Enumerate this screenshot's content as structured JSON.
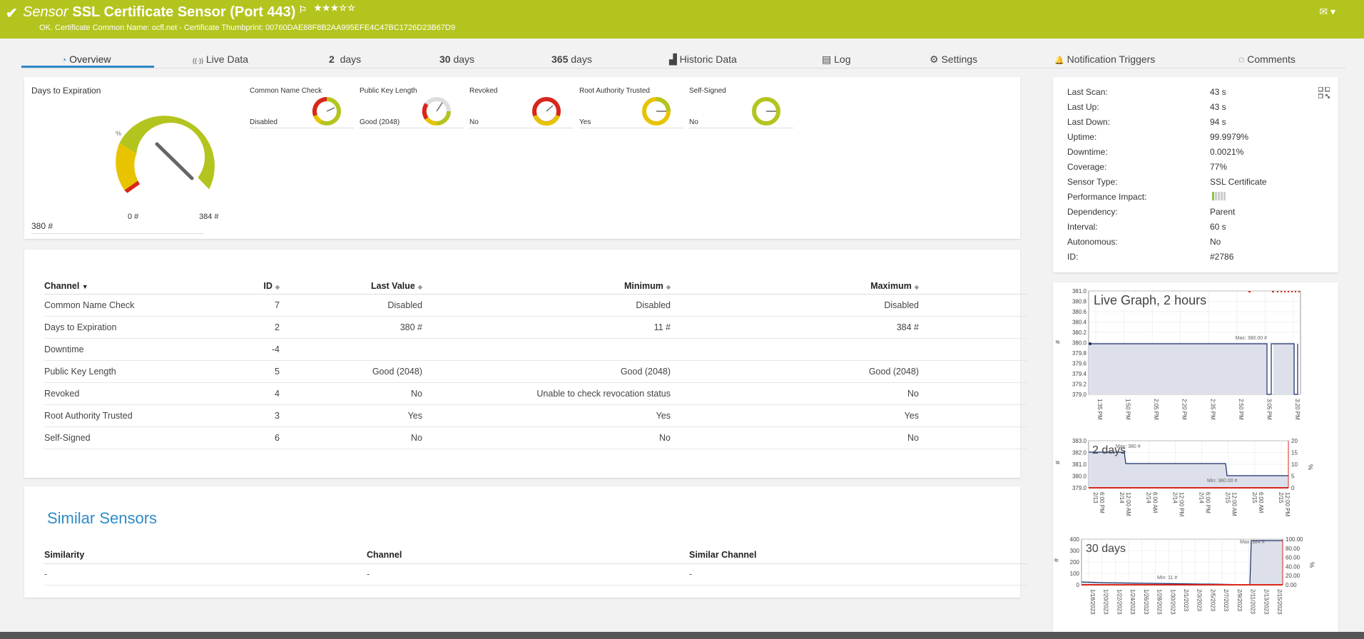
{
  "header": {
    "kind": "Sensor",
    "title": "SSL Certificate Sensor (Port 443)",
    "stars": "★★★☆☆",
    "status": "OK. Certificate Common Name: ocfl.net - Certificate Thumbprint: 00760DAE68F8B2AA995EFE4C47BC1726D23B67D9",
    "check_icon": "✔",
    "flag_icon": "⚐",
    "mail_icon": "✉ ▾"
  },
  "tabs": [
    {
      "label": "Overview",
      "icon": "◔"
    },
    {
      "label": "Live Data",
      "icon": "((·))"
    },
    {
      "num": "2",
      "label": "days"
    },
    {
      "num": "30",
      "label": "days"
    },
    {
      "num": "365",
      "label": "days"
    },
    {
      "label": "Historic Data",
      "icon": "▟"
    },
    {
      "label": "Log",
      "icon": "▤"
    },
    {
      "label": "Settings",
      "icon": "⚙"
    },
    {
      "label": "Notification Triggers",
      "icon": "🔔"
    },
    {
      "label": "Comments",
      "icon": "◌"
    }
  ],
  "gauge_main": {
    "title": "Days to Expiration",
    "value": "380 #",
    "min_label": "0 #",
    "max_label": "384 #",
    "unit": "%"
  },
  "small_gauges": [
    {
      "label": "Common Name Check",
      "value": "Disabled"
    },
    {
      "label": "Public Key Length",
      "value": "Good (2048)"
    },
    {
      "label": "Revoked",
      "value": "No"
    },
    {
      "label": "Root Authority Trusted",
      "value": "Yes"
    },
    {
      "label": "Self-Signed",
      "value": "No"
    }
  ],
  "info": [
    {
      "k": "Last Scan:",
      "v": "43 s"
    },
    {
      "k": "Last Up:",
      "v": "43 s"
    },
    {
      "k": "Last Down:",
      "v": "94 s"
    },
    {
      "k": "Uptime:",
      "v": "99.9979%"
    },
    {
      "k": "Downtime:",
      "v": "0.0021%"
    },
    {
      "k": "Coverage:",
      "v": "77%"
    },
    {
      "k": "Sensor Type:",
      "v": "SSL Certificate"
    },
    {
      "k": "Performance Impact:",
      "v": ""
    },
    {
      "k": "Dependency:",
      "v": "Parent"
    },
    {
      "k": "Interval:",
      "v": "60 s"
    },
    {
      "k": "Autonomous:",
      "v": "No"
    },
    {
      "k": "ID:",
      "v": "#2786"
    }
  ],
  "channels": {
    "headers": [
      "Channel",
      "ID",
      "Last Value",
      "Minimum",
      "Maximum"
    ],
    "rows": [
      [
        "Common Name Check",
        "7",
        "Disabled",
        "Disabled",
        "Disabled"
      ],
      [
        "Days to Expiration",
        "2",
        "380 #",
        "11 #",
        "384 #"
      ],
      [
        "Downtime",
        "-4",
        "",
        "",
        ""
      ],
      [
        "Public Key Length",
        "5",
        "Good (2048)",
        "Good (2048)",
        "Good (2048)"
      ],
      [
        "Revoked",
        "4",
        "No",
        "Unable to check revocation status",
        "No"
      ],
      [
        "Root Authority Trusted",
        "3",
        "Yes",
        "Yes",
        "Yes"
      ],
      [
        "Self-Signed",
        "6",
        "No",
        "No",
        "No"
      ]
    ]
  },
  "similar": {
    "title": "Similar Sensors",
    "headers": [
      "Similarity",
      "Channel",
      "Similar Channel"
    ],
    "row": [
      "-",
      "-",
      "-"
    ]
  },
  "graphs": {
    "live": {
      "title": "Live Graph, 2 hours",
      "y_ticks": [
        "381.0",
        "380.8",
        "380.6",
        "380.4",
        "380.2",
        "380.0",
        "379.8",
        "379.6",
        "379.4",
        "379.2",
        "379.0"
      ],
      "x_ticks": [
        "1:35 PM",
        "1:50 PM",
        "2:05 PM",
        "2:20 PM",
        "2:35 PM",
        "2:50 PM",
        "3:05 PM",
        "3:20 PM"
      ],
      "annotation": "Max: 380.00 #",
      "y_unit": "#"
    },
    "two_days": {
      "title": "2 days",
      "y_ticks": [
        "383.0",
        "382.0",
        "381.0",
        "380.0",
        "379.0"
      ],
      "y2_ticks": [
        "20",
        "15",
        "10",
        "5",
        "0"
      ],
      "x_ticks": [
        "2/13 6:00 PM",
        "2/14 12:00 AM",
        "2/14 6:00 AM",
        "2/14 12:00 PM",
        "2/14 6:00 PM",
        "2/15 12:00 AM",
        "2/15 6:00 AM",
        "2/15 12:00 PM"
      ],
      "annotation_max": "Max: 380 #",
      "annotation_min": "Min: 380.00 #",
      "y_unit": "#",
      "y2_unit": "%"
    },
    "thirty_days": {
      "title": "30 days",
      "y_ticks": [
        "400",
        "300",
        "200",
        "100",
        "0"
      ],
      "y2_ticks": [
        "100.00",
        "80.00",
        "60.00",
        "40.00",
        "20.00",
        "0.00"
      ],
      "x_ticks": [
        "1/18/2023",
        "1/20/2023",
        "1/22/2023",
        "1/24/2023",
        "1/26/2023",
        "1/28/2023",
        "1/30/2023",
        "2/1/2023",
        "2/3/2023",
        "2/5/2023",
        "2/7/2023",
        "2/9/2023",
        "2/11/2023",
        "2/13/2023",
        "2/15/2023"
      ],
      "annotation_max": "Max: 384 #",
      "annotation_min": "Min: 11 #",
      "y_unit": "#",
      "y2_unit": "%"
    }
  },
  "colors": {
    "brand": "#b4c41e",
    "accent": "#2d8bc8",
    "gauge_green": "#b4c41e",
    "gauge_yellow": "#e8c300",
    "gauge_red": "#d9261c"
  }
}
